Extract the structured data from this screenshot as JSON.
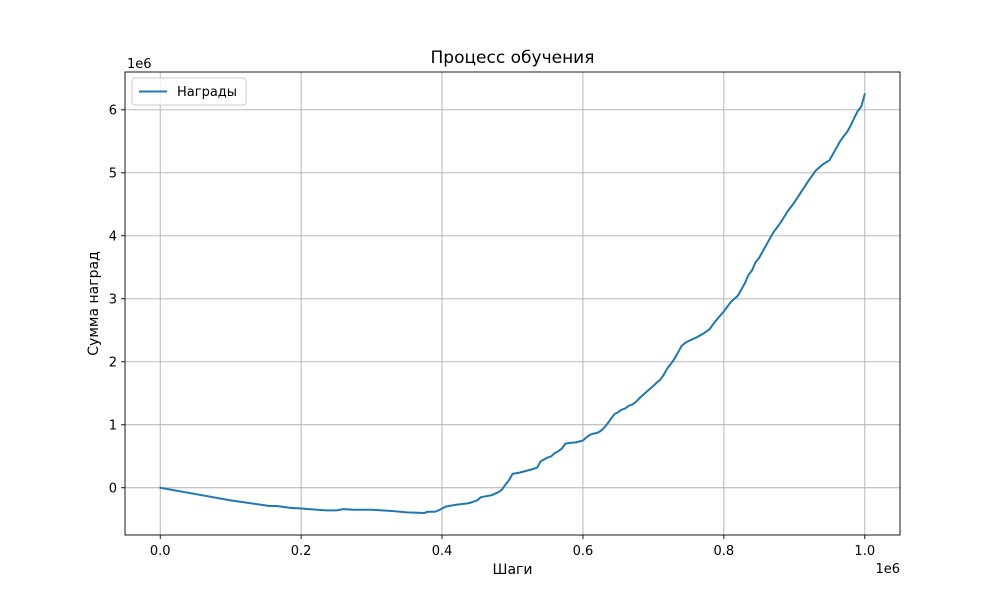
{
  "chart_data": {
    "type": "line",
    "title": "Процесс обучения",
    "xlabel": "Шаги",
    "ylabel": "Сумма наград",
    "x_offset_label": "1e6",
    "y_offset_label": "1e6",
    "xlim": [
      -0.05,
      1.05
    ],
    "ylim": [
      -0.75,
      6.6
    ],
    "x_ticks": [
      0.0,
      0.2,
      0.4,
      0.6,
      0.8,
      1.0
    ],
    "x_tick_labels": [
      "0.0",
      "0.2",
      "0.4",
      "0.6",
      "0.8",
      "1.0"
    ],
    "y_ticks": [
      0,
      1,
      2,
      3,
      4,
      5,
      6
    ],
    "y_tick_labels": [
      "0",
      "1",
      "2",
      "3",
      "4",
      "5",
      "6"
    ],
    "grid": true,
    "legend_position": "top-left",
    "line_color": "#1f77b4",
    "series": [
      {
        "name": "Награды",
        "x": [
          0.0,
          0.05,
          0.1,
          0.155,
          0.165,
          0.185,
          0.2,
          0.235,
          0.25,
          0.26,
          0.275,
          0.3,
          0.33,
          0.35,
          0.375,
          0.38,
          0.39,
          0.395,
          0.4,
          0.405,
          0.42,
          0.435,
          0.44,
          0.45,
          0.455,
          0.47,
          0.48,
          0.485,
          0.49,
          0.495,
          0.5,
          0.51,
          0.52,
          0.53,
          0.535,
          0.54,
          0.545,
          0.55,
          0.555,
          0.56,
          0.565,
          0.57,
          0.575,
          0.58,
          0.59,
          0.6,
          0.605,
          0.61,
          0.615,
          0.62,
          0.625,
          0.63,
          0.635,
          0.64,
          0.645,
          0.65,
          0.655,
          0.66,
          0.665,
          0.67,
          0.675,
          0.68,
          0.69,
          0.7,
          0.71,
          0.715,
          0.72,
          0.725,
          0.73,
          0.735,
          0.74,
          0.745,
          0.75,
          0.76,
          0.77,
          0.78,
          0.785,
          0.79,
          0.8,
          0.81,
          0.82,
          0.83,
          0.835,
          0.84,
          0.845,
          0.85,
          0.855,
          0.86,
          0.865,
          0.87,
          0.88,
          0.89,
          0.9,
          0.91,
          0.92,
          0.93,
          0.94,
          0.95,
          0.955,
          0.96,
          0.965,
          0.97,
          0.975,
          0.98,
          0.985,
          0.99,
          0.995,
          1.0
        ],
        "y": [
          0.0,
          -0.1,
          -0.2,
          -0.29,
          -0.29,
          -0.32,
          -0.33,
          -0.36,
          -0.36,
          -0.34,
          -0.35,
          -0.35,
          -0.37,
          -0.39,
          -0.4,
          -0.38,
          -0.38,
          -0.36,
          -0.33,
          -0.3,
          -0.27,
          -0.25,
          -0.24,
          -0.2,
          -0.15,
          -0.12,
          -0.07,
          -0.03,
          0.05,
          0.12,
          0.22,
          0.24,
          0.27,
          0.3,
          0.32,
          0.42,
          0.45,
          0.48,
          0.5,
          0.55,
          0.58,
          0.62,
          0.7,
          0.71,
          0.72,
          0.75,
          0.8,
          0.84,
          0.86,
          0.87,
          0.9,
          0.95,
          1.02,
          1.1,
          1.17,
          1.2,
          1.24,
          1.26,
          1.3,
          1.32,
          1.36,
          1.42,
          1.52,
          1.62,
          1.72,
          1.8,
          1.9,
          1.97,
          2.05,
          2.15,
          2.25,
          2.3,
          2.33,
          2.38,
          2.44,
          2.52,
          2.6,
          2.67,
          2.8,
          2.95,
          3.05,
          3.25,
          3.38,
          3.45,
          3.58,
          3.65,
          3.75,
          3.85,
          3.95,
          4.05,
          4.2,
          4.38,
          4.53,
          4.7,
          4.87,
          5.03,
          5.13,
          5.2,
          5.3,
          5.4,
          5.5,
          5.58,
          5.65,
          5.75,
          5.87,
          5.98,
          6.05,
          6.25
        ]
      }
    ]
  }
}
